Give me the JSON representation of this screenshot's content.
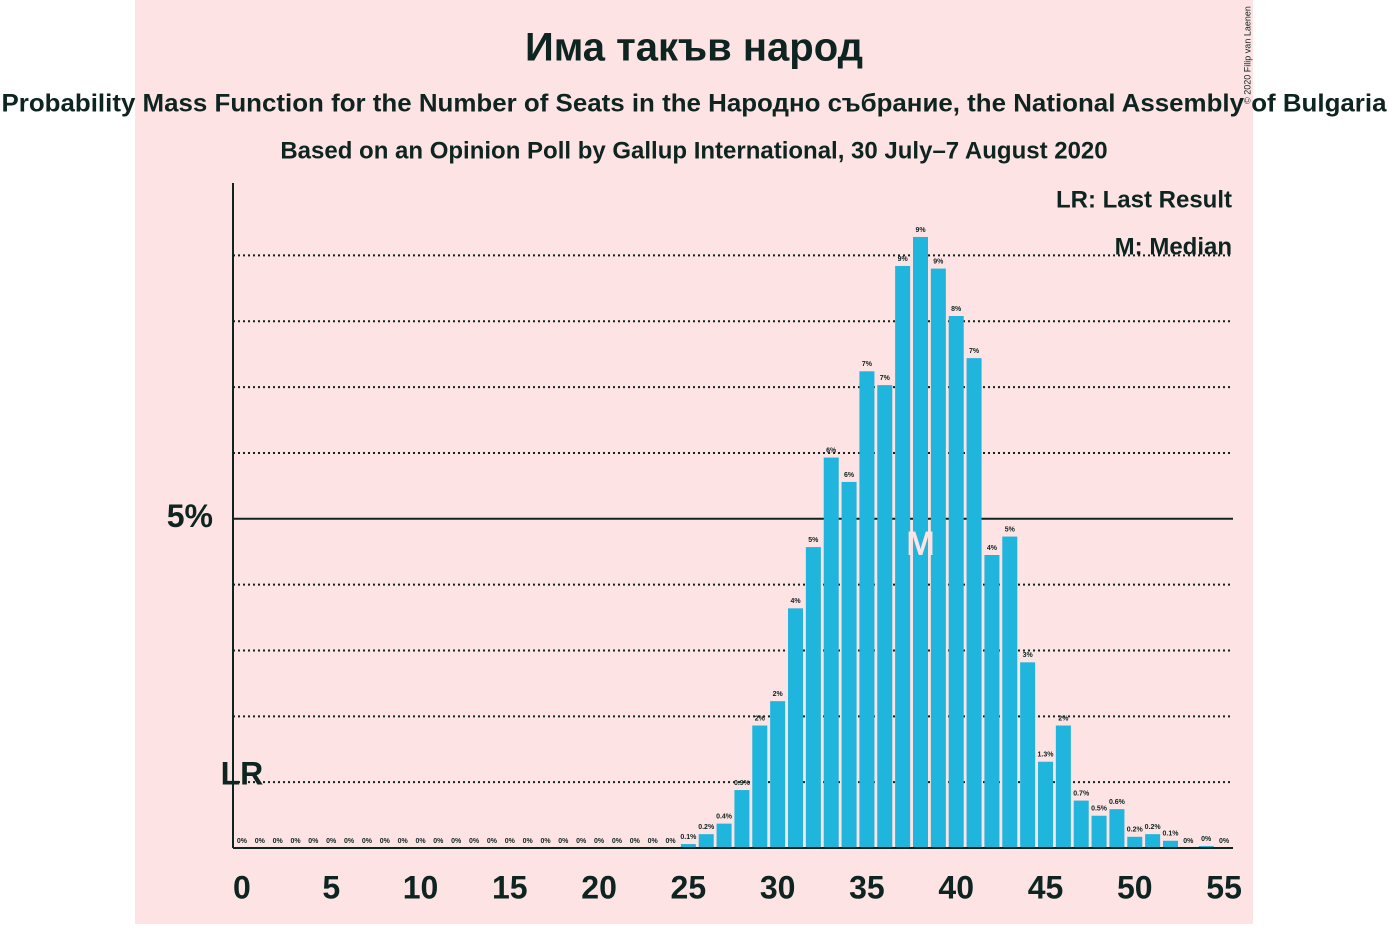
{
  "chart_data": {
    "type": "bar",
    "title": "Има такъв народ",
    "subtitle": "Probability Mass Function for the Number of Seats in the Народно събрание, the National Assembly of Bulgaria",
    "caption": "Based on an Opinion Poll by Gallup International, 30 July–7 August 2020",
    "copyright": "© 2020 Filip van Laenen",
    "legend_notes": [
      "LR: Last Result",
      "M: Median"
    ],
    "annotations": [
      {
        "text": "LR",
        "x": 0
      },
      {
        "text": "M",
        "x": 38
      }
    ],
    "color": "#1fb5dc",
    "x": [
      0,
      1,
      2,
      3,
      4,
      5,
      6,
      7,
      8,
      9,
      10,
      11,
      12,
      13,
      14,
      15,
      16,
      17,
      18,
      19,
      20,
      21,
      22,
      23,
      24,
      25,
      26,
      27,
      28,
      29,
      30,
      31,
      32,
      33,
      34,
      35,
      36,
      37,
      38,
      39,
      40,
      41,
      42,
      43,
      44,
      45,
      46,
      47,
      48,
      49,
      50,
      51,
      52,
      53,
      54,
      55
    ],
    "values": [
      0,
      0,
      0,
      0,
      0,
      0,
      0,
      0,
      0,
      0,
      0,
      0,
      0,
      0,
      0,
      0,
      0,
      0,
      0,
      0,
      0,
      0,
      0,
      0,
      0,
      0.06,
      0.21,
      0.37,
      0.88,
      1.86,
      2.23,
      3.64,
      4.57,
      5.93,
      5.56,
      7.24,
      7.03,
      8.84,
      9.28,
      8.8,
      8.08,
      7.44,
      4.45,
      4.73,
      2.82,
      1.31,
      1.86,
      0.72,
      0.49,
      0.59,
      0.17,
      0.21,
      0.11,
      0,
      0.03,
      0
    ],
    "value_labels": [
      "0%",
      "0%",
      "0%",
      "0%",
      "0%",
      "0%",
      "0%",
      "0%",
      "0%",
      "0%",
      "0%",
      "0%",
      "0%",
      "0%",
      "0%",
      "0%",
      "0%",
      "0%",
      "0%",
      "0%",
      "0%",
      "0%",
      "0%",
      "0%",
      "0%",
      "0.1%",
      "0.2%",
      "0.4%",
      "0.9%",
      "2%",
      "2%",
      "4%",
      "5%",
      "6%",
      "6%",
      "7%",
      "7%",
      "9%",
      "9%",
      "9%",
      "8%",
      "7%",
      "4%",
      "5%",
      "3%",
      "1.3%",
      "2%",
      "0.7%",
      "0.5%",
      "0.6%",
      "0.2%",
      "0.2%",
      "0.1%",
      "0%",
      "0%",
      "0%"
    ],
    "xlim": [
      -0.5,
      55.5
    ],
    "xticks": [
      0,
      5,
      10,
      15,
      20,
      25,
      30,
      35,
      40,
      45,
      50,
      55
    ],
    "ylim": [
      0,
      10.1
    ],
    "yticks": [
      {
        "value": 5,
        "label": "5%"
      }
    ],
    "y_minor_gridlines": [
      1,
      2,
      3,
      4,
      6,
      7,
      8,
      9
    ]
  }
}
